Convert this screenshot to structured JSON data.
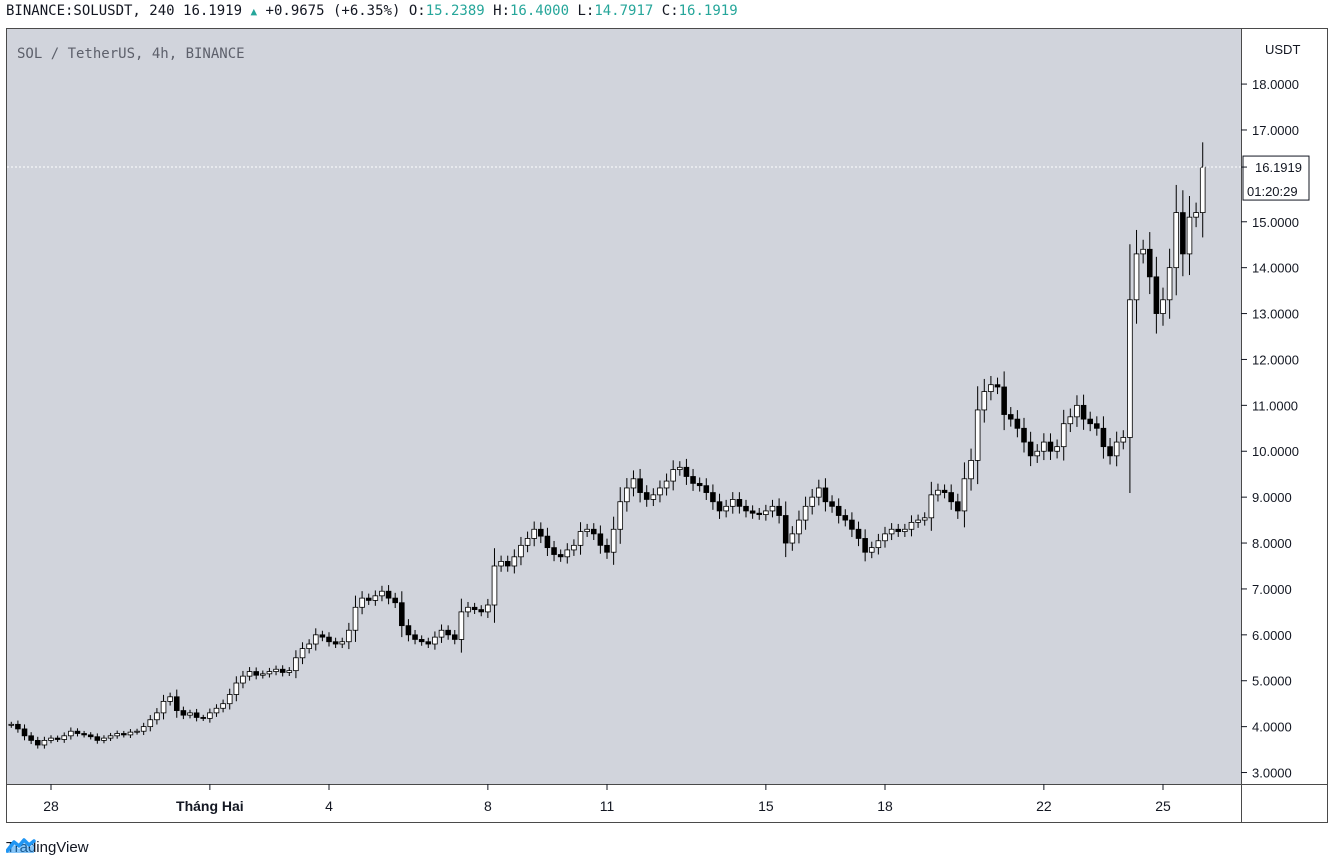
{
  "header": {
    "symbol": "BINANCE:SOLUSDT, 240",
    "last": "16.1919",
    "change": "+0.9675 (+6.35%)",
    "o_label": "O:",
    "o": "15.2389",
    "h_label": "H:",
    "h": "16.4000",
    "l_label": "L:",
    "l": "14.7917",
    "c_label": "C:",
    "c": "16.1919"
  },
  "legend": "SOL / TetherUS, 4h, BINANCE",
  "price_axis": {
    "currency": "USDT",
    "labels": [
      "18.0000",
      "17.0000",
      "15.0000",
      "14.0000",
      "13.0000",
      "12.0000",
      "11.0000",
      "10.0000",
      "9.0000",
      "8.0000",
      "7.0000",
      "6.0000",
      "5.0000",
      "4.0000",
      "3.0000"
    ],
    "last_price": "16.1919",
    "countdown": "01:20:29"
  },
  "time_axis": {
    "labels": [
      "28",
      "Tháng Hai",
      "4",
      "8",
      "11",
      "15",
      "18",
      "22",
      "25"
    ]
  },
  "footer": {
    "brand": "TradingView"
  },
  "colors": {
    "background": "#d1d4dc",
    "up": "#ffffff",
    "down": "#000000",
    "wick": "#000000",
    "header_values": "#26a69a"
  },
  "chart_data": {
    "type": "candlestick",
    "title": "SOL / TetherUS, 4h, BINANCE",
    "ylabel": "USDT",
    "ylim": [
      2.75,
      19.2
    ],
    "x_tick_labels": [
      "28",
      "Tháng Hai",
      "4",
      "8",
      "11",
      "15",
      "18",
      "22",
      "25"
    ],
    "x_tick_days": [
      28,
      32,
      35,
      39,
      42,
      46,
      49,
      53,
      56
    ],
    "x_unit": "day (Jan 1 = 1)",
    "candle_interval_hours": 4,
    "first_candle_day": 27.0,
    "closes": [
      4.05,
      3.95,
      3.8,
      3.7,
      3.6,
      3.7,
      3.75,
      3.72,
      3.8,
      3.9,
      3.85,
      3.82,
      3.78,
      3.7,
      3.75,
      3.8,
      3.85,
      3.82,
      3.88,
      3.9,
      4.0,
      4.15,
      4.3,
      4.55,
      4.65,
      4.35,
      4.25,
      4.3,
      4.2,
      4.18,
      4.3,
      4.4,
      4.5,
      4.7,
      4.95,
      5.1,
      5.2,
      5.12,
      5.15,
      5.2,
      5.25,
      5.18,
      5.22,
      5.5,
      5.7,
      5.8,
      6.0,
      5.95,
      5.85,
      5.8,
      5.85,
      6.1,
      6.6,
      6.8,
      6.75,
      6.85,
      6.95,
      6.8,
      6.7,
      6.2,
      6.0,
      5.9,
      5.85,
      5.8,
      5.95,
      6.1,
      6.0,
      5.9,
      6.5,
      6.6,
      6.55,
      6.5,
      6.65,
      7.5,
      7.6,
      7.5,
      7.7,
      7.95,
      8.1,
      8.3,
      8.15,
      7.9,
      7.75,
      7.7,
      7.85,
      7.95,
      8.25,
      8.3,
      8.2,
      7.95,
      7.8,
      8.3,
      8.9,
      9.2,
      9.4,
      9.1,
      8.95,
      9.05,
      9.2,
      9.35,
      9.6,
      9.65,
      9.45,
      9.3,
      9.25,
      9.1,
      8.9,
      8.7,
      8.8,
      8.95,
      8.8,
      8.7,
      8.65,
      8.62,
      8.7,
      8.8,
      8.6,
      8.0,
      8.2,
      8.5,
      8.8,
      9.0,
      9.2,
      8.9,
      8.8,
      8.6,
      8.5,
      8.3,
      8.1,
      7.8,
      7.9,
      8.05,
      8.2,
      8.3,
      8.25,
      8.3,
      8.45,
      8.5,
      8.55,
      9.05,
      9.15,
      9.1,
      8.9,
      8.7,
      9.4,
      9.8,
      10.9,
      11.3,
      11.45,
      11.4,
      10.8,
      10.7,
      10.5,
      10.2,
      9.9,
      10.0,
      10.2,
      10.0,
      10.1,
      10.6,
      10.75,
      11.0,
      10.7,
      10.6,
      10.5,
      10.1,
      9.9,
      10.2,
      10.3,
      13.3,
      14.3,
      14.4,
      13.8,
      13.0,
      13.3,
      14.0,
      15.2,
      14.3,
      15.1,
      15.2,
      16.19
    ]
  }
}
